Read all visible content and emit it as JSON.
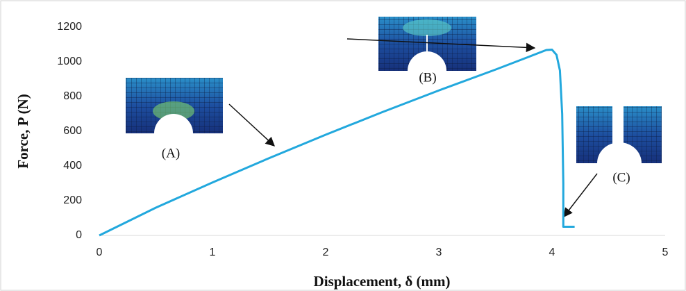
{
  "chart_data": {
    "type": "line",
    "x_label": "Displacement, δ (mm)",
    "y_label": "Force, P (N)",
    "annotations": [
      "(A)",
      "(B)",
      "(C)"
    ],
    "series": [
      {
        "color": "#22a8dd",
        "x": [
          0,
          0.5,
          1,
          1.5,
          2,
          2.5,
          3,
          3.5,
          3.8,
          3.95,
          4.0,
          4.04,
          4.07,
          4.09,
          4.1,
          4.1,
          4.12,
          4.2
        ],
        "values": [
          0,
          160,
          305,
          445,
          580,
          710,
          835,
          955,
          1030,
          1068,
          1070,
          1040,
          950,
          700,
          300,
          50,
          50,
          50
        ]
      }
    ],
    "xlim": [
      0,
      5
    ],
    "xticks": [
      0,
      1,
      2,
      3,
      4,
      5
    ],
    "ylim": [
      0,
      1200
    ],
    "yticks": [
      0,
      200,
      400,
      600,
      800,
      1000,
      1200
    ],
    "grid": false
  }
}
